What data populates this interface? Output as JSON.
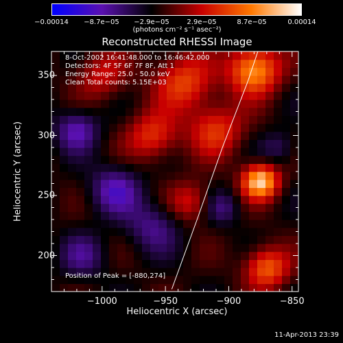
{
  "chart_data": {
    "type": "heatmap",
    "title": "Reconstructed RHESSI Image",
    "xlabel": "Heliocentric X (arcsec)",
    "ylabel": "Heliocentric Y (arcsec)",
    "xlim": [
      -1040,
      -845
    ],
    "ylim": [
      170,
      370
    ],
    "x_ticks": [
      -1000,
      -950,
      -900,
      -850
    ],
    "x_tick_labels": [
      "−1000",
      "−950",
      "−900",
      "−850"
    ],
    "y_ticks": [
      200,
      250,
      300,
      350
    ],
    "y_tick_labels": [
      "200",
      "250",
      "300",
      "350"
    ],
    "colorbar": {
      "range": [
        -0.00014,
        0.00014
      ],
      "tick_labels": [
        "−0.00014",
        "−8.7e−05",
        "−2.9e−05",
        "2.9e−05",
        "8.7e−05",
        "0.00014"
      ],
      "unit": "(photons cm⁻² s⁻¹ asec⁻²)",
      "colors": [
        "#0000ff",
        "#5a10b0",
        "#000000",
        "#c80000",
        "#ff7800",
        "#ffffff"
      ]
    },
    "peak": [
      -880,
      274
    ],
    "limb_points": [
      [
        -945,
        172
      ],
      [
        -925,
        230
      ],
      [
        -905,
        290
      ],
      [
        -885,
        345
      ],
      [
        -877,
        370
      ]
    ],
    "sources": [
      {
        "x": -875,
        "y": 262,
        "amp": 1.0,
        "sigma": 10
      },
      {
        "x": -880,
        "y": 355,
        "amp": 0.85,
        "sigma": 14
      },
      {
        "x": -935,
        "y": 345,
        "amp": 0.55,
        "sigma": 16
      },
      {
        "x": -960,
        "y": 300,
        "amp": 0.5,
        "sigma": 14
      },
      {
        "x": -910,
        "y": 305,
        "amp": 0.5,
        "sigma": 15
      },
      {
        "x": -870,
        "y": 190,
        "amp": 0.65,
        "sigma": 12
      },
      {
        "x": -930,
        "y": 245,
        "amp": 0.4,
        "sigma": 12
      },
      {
        "x": -1000,
        "y": 350,
        "amp": 0.35,
        "sigma": 14
      },
      {
        "x": -990,
        "y": 255,
        "amp": -0.45,
        "sigma": 14
      },
      {
        "x": -1020,
        "y": 305,
        "amp": -0.45,
        "sigma": 12
      },
      {
        "x": -960,
        "y": 225,
        "amp": -0.35,
        "sigma": 15
      },
      {
        "x": -1015,
        "y": 200,
        "amp": -0.3,
        "sigma": 13
      },
      {
        "x": -905,
        "y": 240,
        "amp": -0.3,
        "sigma": 10
      },
      {
        "x": -860,
        "y": 290,
        "amp": -0.25,
        "sigma": 10
      }
    ]
  },
  "annotations": {
    "time_range": "8-Oct-2002 16:41:48.000 to 16:46:42.000",
    "detectors": "Detectors: 4F 5F 6F 7F 8F, Att 1",
    "energy": "Energy Range: 25.0 - 50.0 keV",
    "clean": "Clean     Total counts: 5.15E+03",
    "peak": "Position of Peak = [-880,274]"
  },
  "footer": {
    "timestamp": "11-Apr-2013 23:39"
  }
}
